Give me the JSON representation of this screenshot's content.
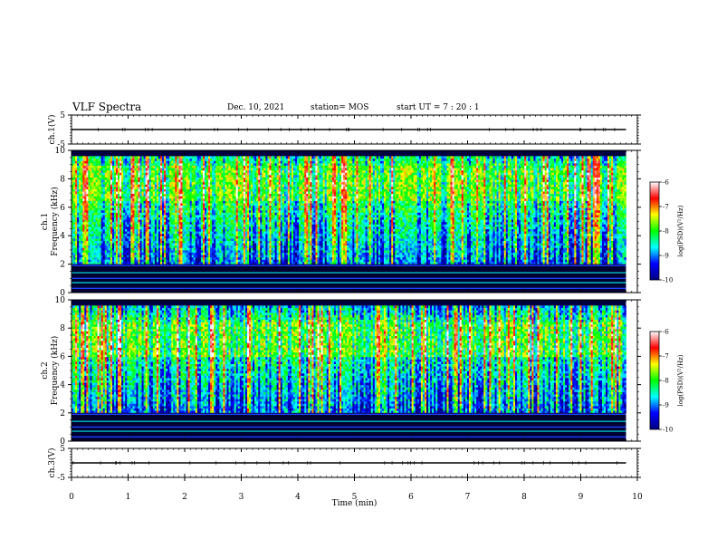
{
  "header": {
    "title": "VLF Spectra",
    "date": "Dec. 10, 2021",
    "station": "station= MOS",
    "start": "start  UT =   7 : 20 : 1"
  },
  "chart_data": [
    {
      "type": "line",
      "panel": "ch1-voltage",
      "ylabel": "ch.1(V)",
      "ylim": [
        -5,
        5
      ],
      "yticks": [
        5,
        -5
      ],
      "xlim": [
        0,
        10
      ],
      "series": [
        {
          "x": [
            0,
            9.8
          ],
          "y": [
            0,
            0
          ]
        }
      ]
    },
    {
      "type": "heatmap",
      "panel": "ch1-spectrogram",
      "ylabel": "ch.1\nFrequency (kHz)",
      "ylim": [
        0,
        10
      ],
      "yticks": [
        0,
        2,
        4,
        6,
        8,
        10
      ],
      "xlim": [
        0,
        10
      ],
      "x_extent_min": 9.8,
      "peak_band_khz": [
        6.5,
        9
      ],
      "colorbar": {
        "label": "log(PSD)(V²/Hz)",
        "range": [
          -10,
          -6
        ],
        "ticks": [
          "-6",
          "-7",
          "-8",
          "-9",
          "-10"
        ]
      }
    },
    {
      "type": "heatmap",
      "panel": "ch2-spectrogram",
      "ylabel": "ch.2\nFrequency (kHz)",
      "ylim": [
        0,
        10
      ],
      "yticks": [
        0,
        2,
        4,
        6,
        8,
        10
      ],
      "xlim": [
        0,
        10
      ],
      "x_extent_min": 9.8,
      "peak_band_khz": [
        6,
        8.5
      ],
      "colorbar": {
        "label": "log(PSD)(V²/Hz)",
        "range": [
          -10,
          -6
        ],
        "ticks": [
          "-6",
          "-7",
          "-8",
          "-9",
          "-10"
        ]
      }
    },
    {
      "type": "line",
      "panel": "ch3-voltage",
      "ylabel": "ch.3(V)",
      "ylim": [
        -5,
        5
      ],
      "yticks": [
        5,
        -5
      ],
      "xlim": [
        0,
        10
      ],
      "series": [
        {
          "x": [
            0,
            9.8
          ],
          "y": [
            0,
            0
          ]
        }
      ]
    }
  ],
  "xaxis": {
    "label": "Time  (min)",
    "ticks": [
      "0",
      "1",
      "2",
      "3",
      "4",
      "5",
      "6",
      "7",
      "8",
      "9",
      "10"
    ]
  },
  "colors": {
    "background": "#000080",
    "colormap": [
      "#000080",
      "#0000ff",
      "#00ffff",
      "#00ff00",
      "#ffff00",
      "#ff0000",
      "#ffffff"
    ]
  }
}
